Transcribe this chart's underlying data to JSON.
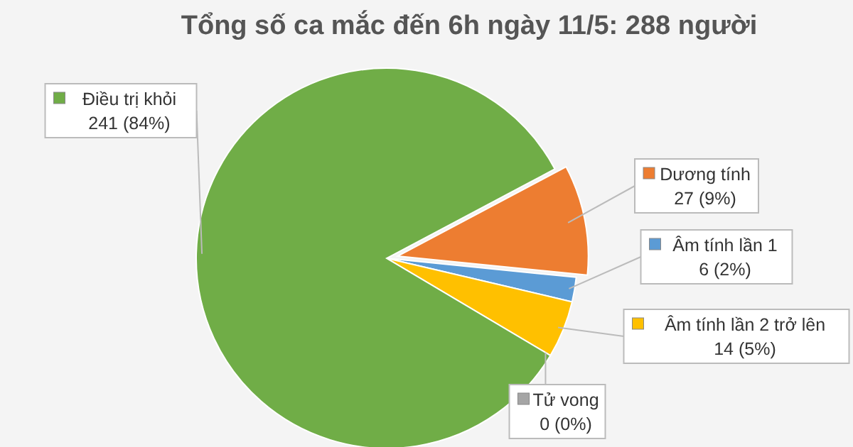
{
  "chart_data": {
    "type": "pie",
    "title": "Tổng số ca mắc đến 6h ngày 11/5: 288 người",
    "categories": [
      "Dương tính",
      "Âm tính lần 1",
      "Âm tính lần 2 trở lên",
      "Tử vong",
      "Điều trị khỏi"
    ],
    "values": [
      27,
      6,
      14,
      0,
      241
    ],
    "value_labels": [
      "27 (9%)",
      "6 (2%)",
      "14 (5%)",
      "0 (0%)",
      "241 (84%)"
    ],
    "colors": [
      "#ed7d31",
      "#5b9bd5",
      "#ffc000",
      "#a5a5a5",
      "#70ad47"
    ],
    "legend": "right"
  }
}
